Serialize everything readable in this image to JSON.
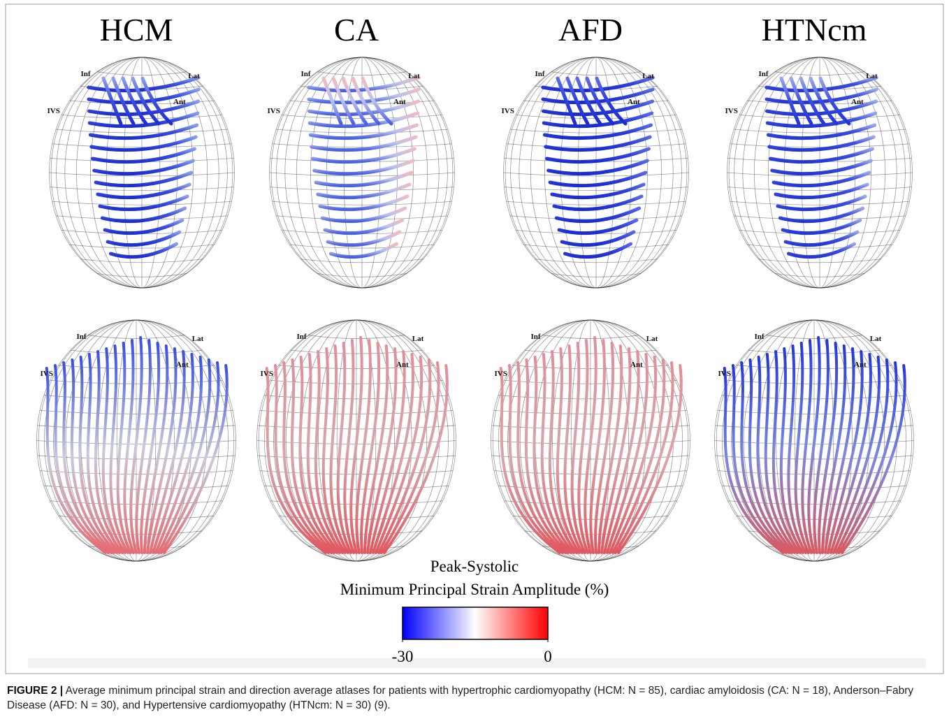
{
  "columns": [
    "HCM",
    "CA",
    "AFD",
    "HTNcm"
  ],
  "panels": [
    {
      "inf": "Inf",
      "lat": "Lat",
      "ant": "Ant",
      "ivs": "IVS"
    },
    {
      "inf": "Inf",
      "lat": "Lat",
      "ant": "Ant",
      "ivs": "IVS"
    },
    {
      "inf": "Inf",
      "lat": "Lat",
      "ant": "Ant",
      "ivs": "IVS"
    },
    {
      "inf": "Inf",
      "lat": "Lat",
      "ant": "Ant",
      "ivs": "IVS"
    },
    {
      "inf": "Inf",
      "lat": "Lat",
      "ant": "Ant",
      "ivs": "IVS"
    },
    {
      "inf": "Inf",
      "lat": "Lat",
      "ant": "Ant",
      "ivs": "IVS"
    },
    {
      "inf": "Inf",
      "lat": "Lat",
      "ant": "Ant",
      "ivs": "IVS"
    },
    {
      "inf": "Inf",
      "lat": "Lat",
      "ant": "Ant",
      "ivs": "IVS"
    }
  ],
  "colorbar": {
    "title": [
      "Peak-Systolic",
      "Minimum Principal Strain Amplitude (%)"
    ],
    "min": -30,
    "max": 0
  },
  "caption": {
    "label": "FIGURE 2 |",
    "text": "Average minimum principal strain and direction average atlases for patients with hypertrophic cardiomyopathy (HCM: N = 85), cardiac amyloidosis (CA: N = 18), Anderson–Fabry Disease (AFD: N = 30), and Hypertensive cardiomyopathy (HTNcm: N = 30) (9)."
  }
}
